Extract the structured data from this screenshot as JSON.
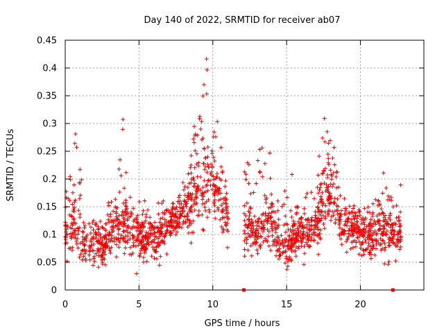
{
  "chart_data": {
    "type": "scatter",
    "title": "Day 140 of 2022, SRMTID for receiver ab07",
    "xlabel": "GPS time / hours",
    "ylabel": "SRMTID / TECUs",
    "xlim": [
      0,
      24.3
    ],
    "ylim": [
      0,
      0.45
    ],
    "xticks": [
      0,
      5,
      10,
      15,
      20
    ],
    "xtick_labels": [
      "0",
      "5",
      "10",
      "15",
      "20"
    ],
    "yticks": [
      0,
      0.05,
      0.1,
      0.15,
      0.2,
      0.25,
      0.3,
      0.35,
      0.4,
      0.45
    ],
    "ytick_labels": [
      "0",
      "0.05",
      "0.1",
      "0.15",
      "0.2",
      "0.25",
      "0.3",
      "0.35",
      "0.4",
      "0.45"
    ],
    "grid": true,
    "marker": "+",
    "color": "#ee0000",
    "gap_markers_x": [
      12.1,
      22.2
    ],
    "envelope": [
      {
        "x": 0.0,
        "base": 0.105,
        "spread": 0.04,
        "peak": 0.18
      },
      {
        "x": 0.5,
        "base": 0.12,
        "spread": 0.05,
        "peak": 0.245
      },
      {
        "x": 0.8,
        "base": 0.11,
        "spread": 0.05,
        "peak": 0.335
      },
      {
        "x": 1.3,
        "base": 0.08,
        "spread": 0.035,
        "peak": 0.14
      },
      {
        "x": 2.0,
        "base": 0.08,
        "spread": 0.035,
        "peak": 0.13
      },
      {
        "x": 2.6,
        "base": 0.075,
        "spread": 0.03,
        "peak": 0.125
      },
      {
        "x": 3.0,
        "base": 0.11,
        "spread": 0.04,
        "peak": 0.19
      },
      {
        "x": 3.5,
        "base": 0.1,
        "spread": 0.04,
        "peak": 0.16
      },
      {
        "x": 3.9,
        "base": 0.12,
        "spread": 0.05,
        "peak": 0.335
      },
      {
        "x": 4.5,
        "base": 0.1,
        "spread": 0.035,
        "peak": 0.17
      },
      {
        "x": 5.5,
        "base": 0.095,
        "spread": 0.035,
        "peak": 0.16
      },
      {
        "x": 6.3,
        "base": 0.09,
        "spread": 0.035,
        "peak": 0.16
      },
      {
        "x": 7.0,
        "base": 0.12,
        "spread": 0.035,
        "peak": 0.165
      },
      {
        "x": 7.8,
        "base": 0.13,
        "spread": 0.035,
        "peak": 0.18
      },
      {
        "x": 8.4,
        "base": 0.15,
        "spread": 0.045,
        "peak": 0.24
      },
      {
        "x": 9.0,
        "base": 0.17,
        "spread": 0.06,
        "peak": 0.36
      },
      {
        "x": 9.5,
        "base": 0.19,
        "spread": 0.07,
        "peak": 0.435
      },
      {
        "x": 10.0,
        "base": 0.19,
        "spread": 0.065,
        "peak": 0.365
      },
      {
        "x": 10.6,
        "base": 0.14,
        "spread": 0.045,
        "peak": 0.25
      },
      {
        "x": 11.0,
        "base": 0.12,
        "spread": 0.04,
        "peak": 0.2
      },
      {
        "x": 12.2,
        "base": 0.11,
        "spread": 0.04,
        "peak": 0.245
      },
      {
        "x": 12.8,
        "base": 0.1,
        "spread": 0.035,
        "peak": 0.2
      },
      {
        "x": 13.4,
        "base": 0.12,
        "spread": 0.045,
        "peak": 0.285
      },
      {
        "x": 14.0,
        "base": 0.12,
        "spread": 0.045,
        "peak": 0.25
      },
      {
        "x": 14.6,
        "base": 0.085,
        "spread": 0.035,
        "peak": 0.17
      },
      {
        "x": 15.2,
        "base": 0.08,
        "spread": 0.035,
        "peak": 0.245
      },
      {
        "x": 15.8,
        "base": 0.1,
        "spread": 0.035,
        "peak": 0.17
      },
      {
        "x": 16.5,
        "base": 0.1,
        "spread": 0.035,
        "peak": 0.19
      },
      {
        "x": 17.0,
        "base": 0.11,
        "spread": 0.04,
        "peak": 0.2
      },
      {
        "x": 17.6,
        "base": 0.17,
        "spread": 0.06,
        "peak": 0.335
      },
      {
        "x": 18.2,
        "base": 0.16,
        "spread": 0.05,
        "peak": 0.265
      },
      {
        "x": 18.8,
        "base": 0.11,
        "spread": 0.035,
        "peak": 0.17
      },
      {
        "x": 19.5,
        "base": 0.11,
        "spread": 0.035,
        "peak": 0.18
      },
      {
        "x": 20.2,
        "base": 0.09,
        "spread": 0.035,
        "peak": 0.15
      },
      {
        "x": 21.0,
        "base": 0.1,
        "spread": 0.035,
        "peak": 0.16
      },
      {
        "x": 21.6,
        "base": 0.11,
        "spread": 0.04,
        "peak": 0.225
      },
      {
        "x": 22.2,
        "base": 0.1,
        "spread": 0.035,
        "peak": 0.17
      },
      {
        "x": 22.7,
        "base": 0.1,
        "spread": 0.035,
        "peak": 0.19
      }
    ],
    "gaps": [
      [
        11.05,
        12.1
      ],
      [
        22.75,
        24.3
      ]
    ],
    "n_points": 1900,
    "seed": 140
  }
}
